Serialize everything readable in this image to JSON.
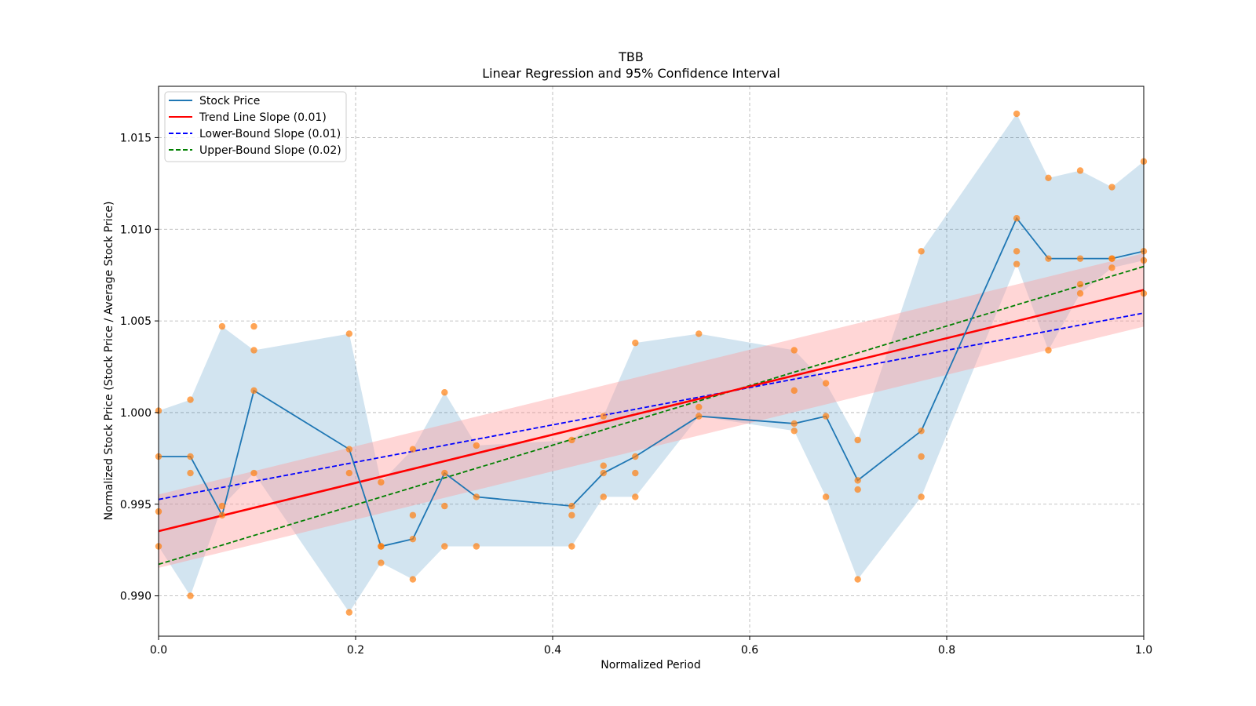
{
  "chart_data": {
    "type": "line",
    "title": "TBB",
    "subtitle": "Linear Regression and 95% Confidence Interval",
    "xlabel": "Normalized Period",
    "ylabel": "Normalized Stock Price (Stock Price / Average Stock Price)",
    "xlim": [
      0.0,
      1.0
    ],
    "ylim": [
      0.9878,
      1.0178
    ],
    "xticks": [
      0.0,
      0.2,
      0.4,
      0.6,
      0.8,
      1.0
    ],
    "xtick_labels": [
      "0.0",
      "0.2",
      "0.4",
      "0.6",
      "0.8",
      "1.0"
    ],
    "yticks": [
      0.99,
      0.995,
      1.0,
      1.005,
      1.01,
      1.015
    ],
    "ytick_labels": [
      "0.990",
      "0.995",
      "1.000",
      "1.005",
      "1.010",
      "1.015"
    ],
    "grid": true,
    "legend_position": "top-left",
    "legend": [
      {
        "label": "Stock Price",
        "color": "#1f77b4",
        "style": "solid"
      },
      {
        "label": "Trend Line Slope (0.01)",
        "color": "#ff0000",
        "style": "solid"
      },
      {
        "label": "Lower-Bound Slope (0.01)",
        "color": "#0000ff",
        "style": "dashed"
      },
      {
        "label": "Upper-Bound Slope (0.02)",
        "color": "#008000",
        "style": "dashed"
      }
    ],
    "colors": {
      "price_line": "#1f77b4",
      "price_band": "#1f77b4",
      "scatter": "#ff7f0e",
      "trend": "#ff0000",
      "trend_band": "#ff9999",
      "lower": "#0000ff",
      "upper": "#008000",
      "grid": "#b0b0b0"
    },
    "stock_price": {
      "x": [
        0.0,
        0.0323,
        0.0645,
        0.0968,
        0.1935,
        0.2258,
        0.2581,
        0.2903,
        0.3226,
        0.4194,
        0.4516,
        0.4839,
        0.5484,
        0.6452,
        0.6774,
        0.7097,
        0.7742,
        0.871,
        0.9032,
        0.9355,
        0.9677,
        1.0
      ],
      "y": [
        0.9976,
        0.9976,
        0.9944,
        1.0012,
        0.998,
        0.9927,
        0.9931,
        0.9967,
        0.9954,
        0.9949,
        0.9967,
        0.9976,
        0.9998,
        0.9994,
        0.9998,
        0.9963,
        0.999,
        1.0106,
        1.0084,
        1.0084,
        1.0084,
        1.0088
      ]
    },
    "price_band": {
      "x": [
        0.0,
        0.0323,
        0.0645,
        0.0968,
        0.1935,
        0.2258,
        0.2581,
        0.2903,
        0.3226,
        0.4194,
        0.4516,
        0.4839,
        0.5484,
        0.6452,
        0.6774,
        0.7097,
        0.7742,
        0.871,
        0.9032,
        0.9355,
        0.9677,
        1.0
      ],
      "upper": [
        1.0001,
        1.0007,
        1.0047,
        1.0034,
        1.0043,
        0.9962,
        0.998,
        1.0011,
        0.9982,
        0.9985,
        0.9998,
        1.0038,
        1.0043,
        1.0034,
        1.0016,
        0.9985,
        1.0088,
        1.0163,
        1.0128,
        1.0132,
        1.0123,
        1.0137
      ],
      "lower": [
        0.9927,
        0.99,
        0.9949,
        0.9967,
        0.9891,
        0.9918,
        0.9909,
        0.9927,
        0.9927,
        0.9927,
        0.9954,
        0.9954,
        0.9998,
        0.999,
        0.9954,
        0.9909,
        0.9954,
        1.0081,
        1.0034,
        1.0065,
        1.0079,
        1.0083
      ]
    },
    "scatter_points": {
      "x": [
        0.0,
        0.0,
        0.0,
        0.0,
        0.0323,
        0.0323,
        0.0323,
        0.0323,
        0.0645,
        0.0645,
        0.0645,
        0.0968,
        0.0968,
        0.0968,
        0.0968,
        0.1935,
        0.1935,
        0.1935,
        0.1935,
        0.2258,
        0.2258,
        0.2258,
        0.2258,
        0.2581,
        0.2581,
        0.2581,
        0.2581,
        0.2903,
        0.2903,
        0.2903,
        0.2903,
        0.3226,
        0.3226,
        0.3226,
        0.4194,
        0.4194,
        0.4194,
        0.4194,
        0.4516,
        0.4516,
        0.4516,
        0.4516,
        0.4839,
        0.4839,
        0.4839,
        0.4839,
        0.5484,
        0.5484,
        0.5484,
        0.6452,
        0.6452,
        0.6452,
        0.6452,
        0.6774,
        0.6774,
        0.6774,
        0.7097,
        0.7097,
        0.7097,
        0.7097,
        0.7742,
        0.7742,
        0.7742,
        0.7742,
        0.871,
        0.871,
        0.871,
        0.871,
        0.9032,
        0.9032,
        0.9032,
        0.9355,
        0.9355,
        0.9355,
        0.9355,
        0.9677,
        0.9677,
        0.9677,
        0.9677,
        1.0,
        1.0,
        1.0,
        1.0
      ],
      "y": [
        1.0001,
        0.9976,
        0.9946,
        0.9927,
        1.0007,
        0.9976,
        0.9967,
        0.99,
        1.0047,
        0.9949,
        0.9944,
        1.0047,
        1.0034,
        1.0012,
        0.9967,
        1.0043,
        0.998,
        0.9967,
        0.9891,
        0.9962,
        0.9927,
        0.9927,
        0.9918,
        0.998,
        0.9944,
        0.9931,
        0.9909,
        1.0011,
        0.9967,
        0.9949,
        0.9927,
        0.9982,
        0.9954,
        0.9927,
        0.9985,
        0.9944,
        0.9949,
        0.9927,
        0.9998,
        0.9971,
        0.9967,
        0.9954,
        1.0038,
        0.9976,
        0.9967,
        0.9954,
        1.0043,
        1.0003,
        0.9998,
        1.0034,
        1.0012,
        0.9994,
        0.999,
        1.0016,
        0.9998,
        0.9954,
        0.9985,
        0.9963,
        0.9958,
        0.9909,
        1.0088,
        0.999,
        0.9976,
        0.9954,
        1.0163,
        1.0106,
        1.0088,
        1.0081,
        1.0128,
        1.0084,
        1.0034,
        1.0132,
        1.007,
        1.0084,
        1.0065,
        1.0123,
        1.0084,
        1.0079,
        1.0084,
        1.0137,
        1.0088,
        1.0083,
        1.0065
      ]
    },
    "trend_line": {
      "x": [
        0.0,
        1.0
      ],
      "y": [
        0.99353,
        1.00669
      ]
    },
    "trend_band": {
      "x": [
        0.0,
        1.0
      ],
      "upper": [
        0.99553,
        1.00869
      ],
      "lower": [
        0.99153,
        1.00469
      ]
    },
    "lower_bound_line": {
      "x": [
        0.0,
        1.0
      ],
      "y": [
        0.99526,
        1.00543
      ]
    },
    "upper_bound_line": {
      "x": [
        0.0,
        1.0
      ],
      "y": [
        0.99172,
        1.00797
      ]
    }
  }
}
